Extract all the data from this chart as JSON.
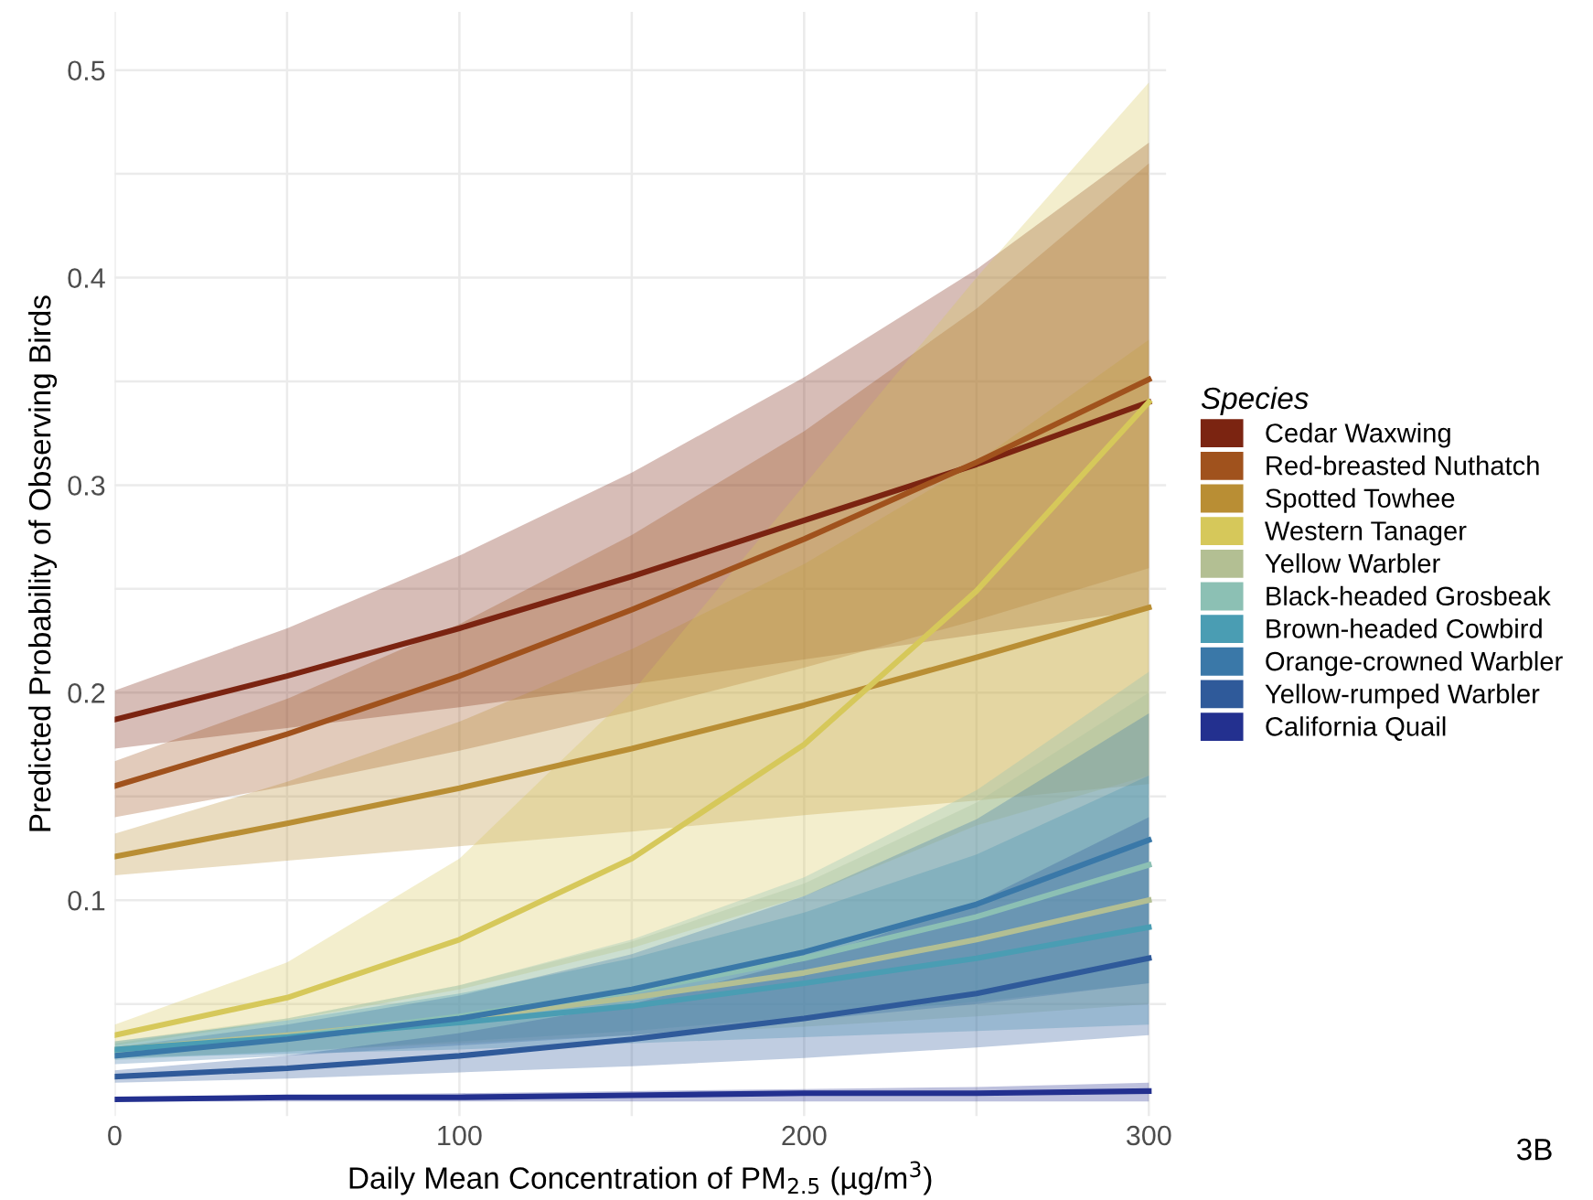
{
  "chart_data": {
    "type": "line",
    "xlabel": "Daily Mean Concentration of PM$_{2.5}$ (µg/m$^{3}$)",
    "ylabel": "Predicted Probability of Observing Birds",
    "legend_title": "Species",
    "legend": "right",
    "grid": true,
    "marker": "none",
    "line_style": "solid",
    "xlim": [
      0,
      305
    ],
    "ylim": [
      -0.004,
      0.528
    ],
    "xticks": [
      0,
      {
        "value": 50,
        "label": null
      },
      100,
      {
        "value": 150,
        "label": null
      },
      200,
      {
        "value": 250,
        "label": null
      },
      300
    ],
    "yticks": [
      {
        "value": 0.05,
        "label": null
      },
      0.1,
      {
        "value": 0.15,
        "label": null
      },
      0.2,
      {
        "value": 0.25,
        "label": null
      },
      0.3,
      {
        "value": 0.35,
        "label": null
      },
      0.4,
      {
        "value": 0.45,
        "label": null
      },
      0.5
    ],
    "annotations": [
      "3B"
    ],
    "series": [
      {
        "name": "Cedar Waxwing",
        "color": "#7b2411",
        "x": [
          0,
          50,
          100,
          150,
          200,
          250,
          300
        ],
        "values": [
          0.187,
          0.208,
          0.231,
          0.256,
          0.283,
          0.31,
          0.34
        ],
        "lower": [
          0.173,
          0.183,
          0.193,
          0.204,
          0.216,
          0.228,
          0.24
        ],
        "upper": [
          0.201,
          0.231,
          0.266,
          0.306,
          0.352,
          0.404,
          0.465
        ]
      },
      {
        "name": "Red-breasted Nuthatch",
        "color": "#a0521d",
        "x": [
          0,
          50,
          100,
          150,
          200,
          250,
          300
        ],
        "values": [
          0.155,
          0.18,
          0.208,
          0.24,
          0.274,
          0.311,
          0.351
        ],
        "lower": [
          0.14,
          0.155,
          0.172,
          0.191,
          0.212,
          0.235,
          0.26
        ],
        "upper": [
          0.167,
          0.197,
          0.233,
          0.276,
          0.326,
          0.385,
          0.455
        ]
      },
      {
        "name": "Spotted Towhee",
        "color": "#b98e34",
        "x": [
          0,
          50,
          100,
          150,
          200,
          250,
          300
        ],
        "values": [
          0.121,
          0.137,
          0.154,
          0.173,
          0.194,
          0.217,
          0.241
        ],
        "lower": [
          0.112,
          0.119,
          0.126,
          0.133,
          0.141,
          0.148,
          0.156
        ],
        "upper": [
          0.132,
          0.157,
          0.186,
          0.221,
          0.262,
          0.311,
          0.37
        ]
      },
      {
        "name": "Western Tanager",
        "color": "#d6c85a",
        "x": [
          0,
          50,
          100,
          150,
          200,
          250,
          300
        ],
        "values": [
          0.035,
          0.053,
          0.081,
          0.12,
          0.175,
          0.249,
          0.34
        ],
        "lower": [
          0.03,
          0.042,
          0.057,
          0.077,
          0.102,
          0.136,
          0.16
        ],
        "upper": [
          0.04,
          0.07,
          0.12,
          0.2,
          0.3,
          0.4,
          0.494
        ]
      },
      {
        "name": "Yellow Warbler",
        "color": "#b3bf93",
        "x": [
          0,
          50,
          100,
          150,
          200,
          250,
          300
        ],
        "values": [
          0.028,
          0.035,
          0.043,
          0.053,
          0.065,
          0.081,
          0.1
        ],
        "lower": [
          0.024,
          0.027,
          0.031,
          0.035,
          0.039,
          0.044,
          0.05
        ],
        "upper": [
          0.032,
          0.043,
          0.059,
          0.08,
          0.108,
          0.147,
          0.2
        ]
      },
      {
        "name": "Black-headed Grosbeak",
        "color": "#8cc0b4",
        "x": [
          0,
          50,
          100,
          150,
          200,
          250,
          300
        ],
        "values": [
          0.027,
          0.034,
          0.044,
          0.056,
          0.072,
          0.092,
          0.117
        ],
        "lower": [
          0.023,
          0.027,
          0.032,
          0.037,
          0.044,
          0.051,
          0.06
        ],
        "upper": [
          0.031,
          0.043,
          0.059,
          0.081,
          0.111,
          0.153,
          0.21
        ]
      },
      {
        "name": "Brown-headed Cowbird",
        "color": "#4a9db3",
        "x": [
          0,
          50,
          100,
          150,
          200,
          250,
          300
        ],
        "values": [
          0.028,
          0.034,
          0.041,
          0.049,
          0.06,
          0.072,
          0.087
        ],
        "lower": [
          0.024,
          0.026,
          0.028,
          0.031,
          0.034,
          0.037,
          0.04
        ],
        "upper": [
          0.032,
          0.042,
          0.055,
          0.072,
          0.094,
          0.122,
          0.16
        ]
      },
      {
        "name": "Orange-crowned Warbler",
        "color": "#3a78a8",
        "x": [
          0,
          50,
          100,
          150,
          200,
          250,
          300
        ],
        "values": [
          0.025,
          0.033,
          0.043,
          0.057,
          0.075,
          0.098,
          0.129
        ],
        "lower": [
          0.021,
          0.025,
          0.03,
          0.035,
          0.042,
          0.05,
          0.06
        ],
        "upper": [
          0.029,
          0.04,
          0.054,
          0.074,
          0.102,
          0.139,
          0.19
        ]
      },
      {
        "name": "Yellow-rumped Warbler",
        "color": "#2f5a9a",
        "x": [
          0,
          50,
          100,
          150,
          200,
          250,
          300
        ],
        "values": [
          0.015,
          0.019,
          0.025,
          0.033,
          0.043,
          0.055,
          0.072
        ],
        "lower": [
          0.012,
          0.014,
          0.017,
          0.02,
          0.024,
          0.029,
          0.035
        ],
        "upper": [
          0.018,
          0.025,
          0.036,
          0.05,
          0.071,
          0.099,
          0.14
        ]
      },
      {
        "name": "California Quail",
        "color": "#23308f",
        "x": [
          0,
          50,
          100,
          150,
          200,
          250,
          300
        ],
        "values": [
          0.004,
          0.005,
          0.005,
          0.006,
          0.007,
          0.007,
          0.008
        ],
        "lower": [
          0.003,
          0.003,
          0.003,
          0.003,
          0.003,
          0.003,
          0.003
        ],
        "upper": [
          0.005,
          0.006,
          0.007,
          0.008,
          0.009,
          0.01,
          0.012
        ]
      }
    ]
  }
}
